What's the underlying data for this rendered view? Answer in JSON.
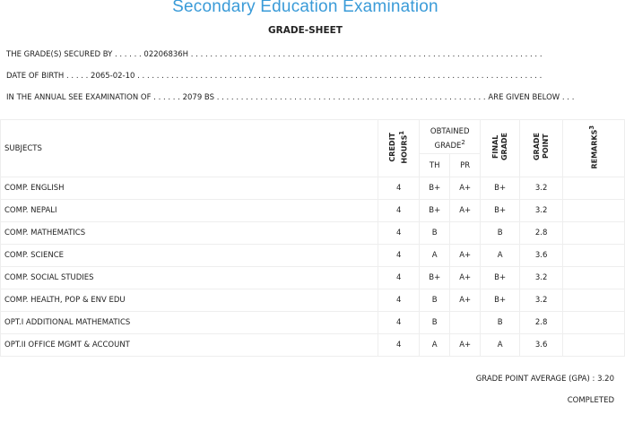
{
  "header": {
    "exam_title": "Secondary Education Examination",
    "sheet_title": "GRADE-SHEET"
  },
  "info": {
    "line1_label": "THE GRADE(S) SECURED BY . . . . . .",
    "line1_value": "02206836H",
    "line1_trail": ". . . . . . . . . . . . . . . . . . . . . . . . . . . . . . . . . . . . . . . . . . . . . . . . . . . . . . . . . . . . . . . . . . . . . . . . .",
    "line2_label": "DATE OF BIRTH . . . . .",
    "line2_value": "2065-02-10",
    "line2_trail": ". . . . . . . . . . . . . . . . . . . . . . . . . . . . . . . . . . . . . . . . . . . . . . . . . . . . . . . . . . . . . . . . . . . . . . . . . . . . . . . . . . . .",
    "line3_label": "IN THE ANNUAL SEE EXAMINATION OF . . . . . .",
    "line3_value": "2079 BS",
    "line3_trail": ". . . . . . . . . . . . . . . . . . . . . . . . . . . . . . . . . . . . . . . . . . . . . . . . . . . . . . . .",
    "line3_end": "ARE GIVEN BELOW . . ."
  },
  "table": {
    "headers": {
      "subjects": "SUBJECTS",
      "credit": "CREDIT",
      "hours": "HOURS",
      "hours_sup": "1",
      "obtained": "OBTAINED",
      "grade": "GRADE",
      "grade_sup": "2",
      "th": "TH",
      "pr": "PR",
      "final": "FINAL",
      "final_grade": "GRADE",
      "grade_word": "GRADE",
      "point": "POINT",
      "remarks": "REMARKS",
      "remarks_sup": "3"
    },
    "rows": [
      {
        "subject": "COMP. ENGLISH",
        "credit": "4",
        "th": "B+",
        "pr": "A+",
        "final": "B+",
        "gp": "3.2",
        "remarks": ""
      },
      {
        "subject": "COMP. NEPALI",
        "credit": "4",
        "th": "B+",
        "pr": "A+",
        "final": "B+",
        "gp": "3.2",
        "remarks": ""
      },
      {
        "subject": "COMP. MATHEMATICS",
        "credit": "4",
        "th": "B",
        "pr": "",
        "final": "B",
        "gp": "2.8",
        "remarks": ""
      },
      {
        "subject": "COMP. SCIENCE",
        "credit": "4",
        "th": "A",
        "pr": "A+",
        "final": "A",
        "gp": "3.6",
        "remarks": ""
      },
      {
        "subject": "COMP. SOCIAL STUDIES",
        "credit": "4",
        "th": "B+",
        "pr": "A+",
        "final": "B+",
        "gp": "3.2",
        "remarks": ""
      },
      {
        "subject": "COMP. HEALTH, POP & ENV EDU",
        "credit": "4",
        "th": "B",
        "pr": "A+",
        "final": "B+",
        "gp": "3.2",
        "remarks": ""
      },
      {
        "subject": "OPT.I ADDITIONAL MATHEMATICS",
        "credit": "4",
        "th": "B",
        "pr": "",
        "final": "B",
        "gp": "2.8",
        "remarks": ""
      },
      {
        "subject": "OPT.II OFFICE MGMT & ACCOUNT",
        "credit": "4",
        "th": "A",
        "pr": "A+",
        "final": "A",
        "gp": "3.6",
        "remarks": ""
      }
    ]
  },
  "summary": {
    "gpa_text": "GRADE POINT AVERAGE (GPA) : 3.20",
    "status": "COMPLETED"
  }
}
